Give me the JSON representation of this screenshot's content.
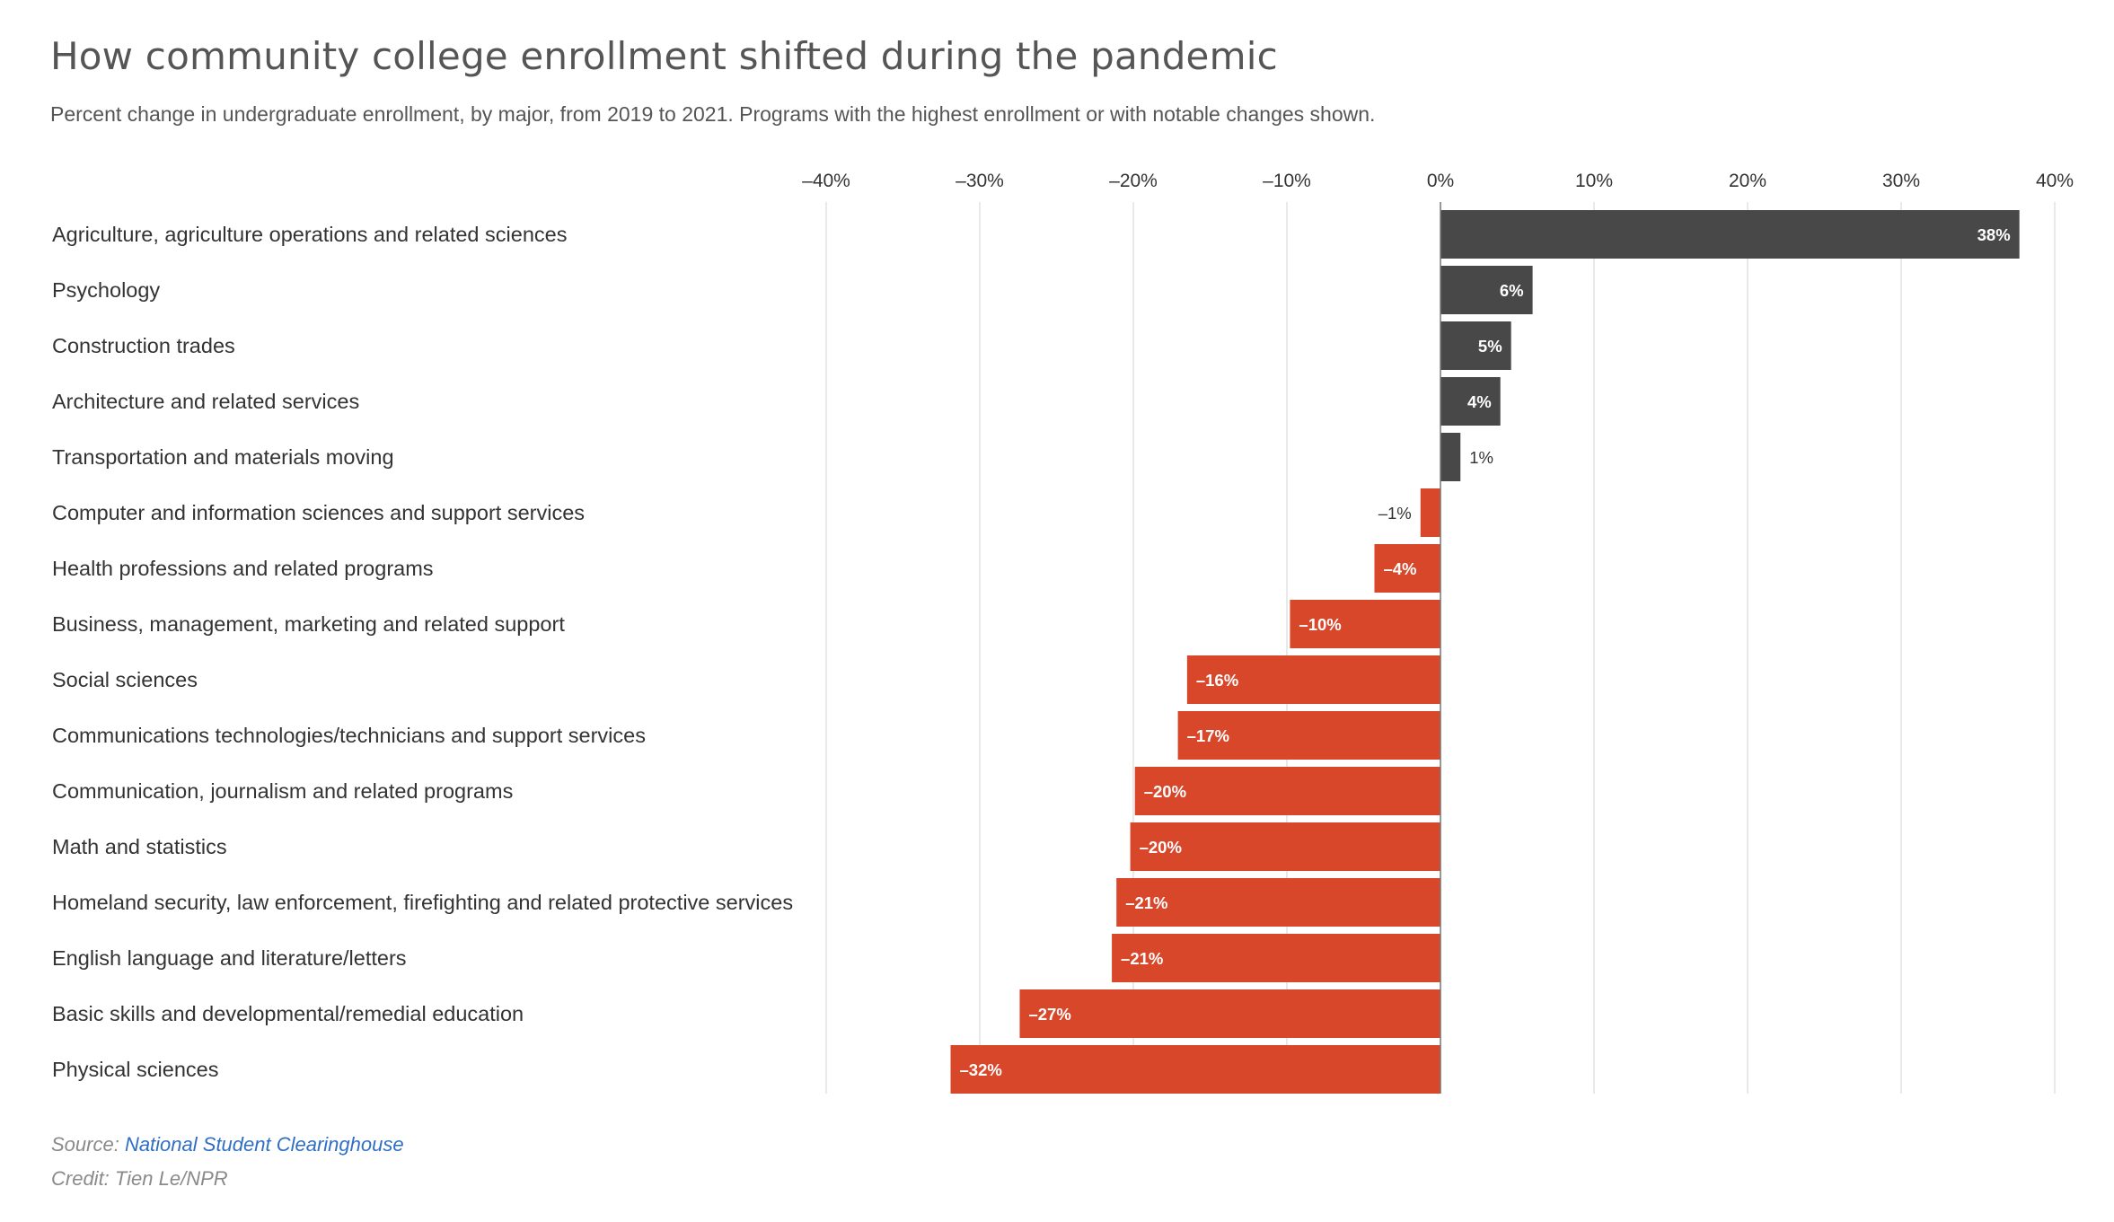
{
  "chart_data": {
    "type": "bar",
    "orientation": "horizontal",
    "title": "How community college enrollment shifted during the pandemic",
    "subtitle": "Percent change in undergraduate enrollment, by major, from 2019 to 2021. Programs with the highest enrollment or with notable changes shown.",
    "categories": [
      "Agriculture, agriculture operations and related sciences",
      "Psychology",
      "Construction trades",
      "Architecture and related services",
      "Transportation and materials moving",
      "Computer and information sciences and support services",
      "Health professions and related programs",
      "Business, management, marketing and related support",
      "Social sciences",
      "Communications technologies/technicians and support services",
      "Communication, journalism and related programs",
      "Math and statistics",
      "Homeland security, law enforcement, firefighting and related protective services",
      "English language and literature/letters",
      "Basic skills and developmental/remedial education",
      "Physical sciences"
    ],
    "values": [
      37.7,
      6.0,
      4.6,
      3.9,
      1.3,
      -1.3,
      -4.3,
      -9.8,
      -16.5,
      -17.1,
      -19.9,
      -20.2,
      -21.1,
      -21.4,
      -27.4,
      -31.9
    ],
    "data_labels": [
      "38%",
      "6%",
      "5%",
      "4%",
      "1%",
      "–1%",
      "–4%",
      "–10%",
      "–16%",
      "–17%",
      "–20%",
      "–20%",
      "–21%",
      "–21%",
      "–27%",
      "–32%"
    ],
    "xlim": [
      -40,
      40
    ],
    "xticks": [
      -40,
      -30,
      -20,
      -10,
      0,
      10,
      20,
      30,
      40
    ],
    "xtick_labels": [
      "–40%",
      "–30%",
      "–20%",
      "–10%",
      "0%",
      "10%",
      "20%",
      "30%",
      "40%"
    ],
    "xlabel": "",
    "ylabel": "",
    "grid": true,
    "colors": {
      "positive": "#484848",
      "negative": "#d9472b",
      "gridline": "#e2e2e2",
      "zero_line": "#777777"
    }
  },
  "footer": {
    "source_prefix": "Source: ",
    "source_link_text": "National Student Clearinghouse",
    "credit": "Credit: Tien Le/NPR"
  }
}
